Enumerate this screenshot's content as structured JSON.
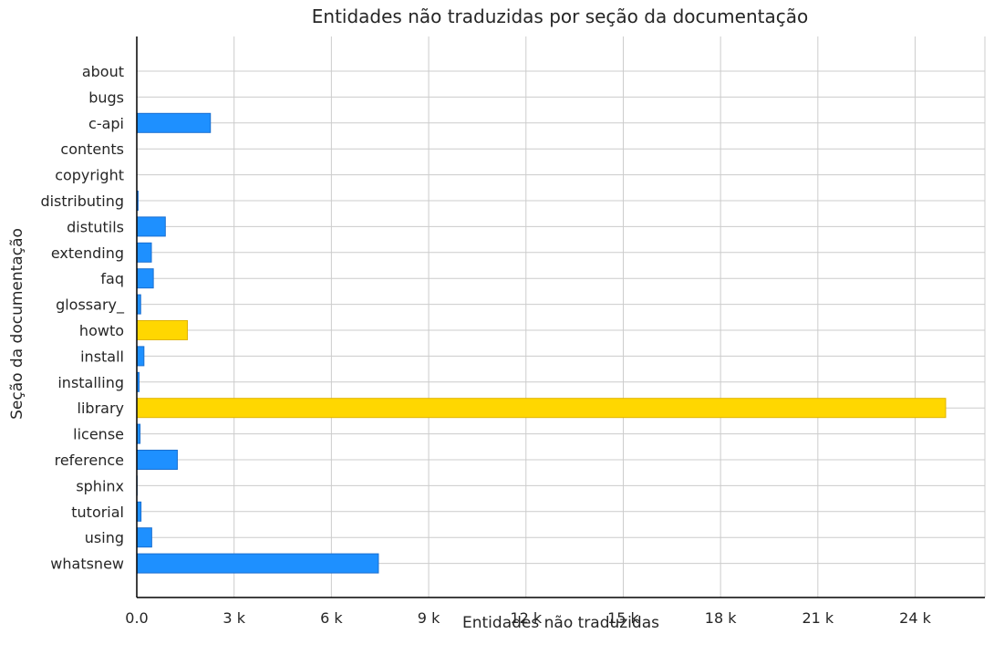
{
  "chart_data": {
    "type": "bar",
    "orientation": "horizontal",
    "title": "Entidades não traduzidas por seção da documentação",
    "xlabel": "Entidades não traduzidas",
    "ylabel": "Seção da documentação",
    "xlim": [
      0,
      26150
    ],
    "xticks": [
      0,
      3000,
      6000,
      9000,
      12000,
      15000,
      18000,
      21000,
      24000
    ],
    "xtick_labels": [
      "0.0",
      "3 k",
      "6 k",
      "9 k",
      "12 k",
      "15 k",
      "18 k",
      "21 k",
      "24 k"
    ],
    "grid": true,
    "categories": [
      "about",
      "bugs",
      "c-api",
      "contents",
      "copyright",
      "distributing",
      "distutils",
      "extending",
      "faq",
      "glossary_",
      "howto",
      "install",
      "installing",
      "library",
      "license",
      "reference",
      "sphinx",
      "tutorial",
      "using",
      "whatsnew"
    ],
    "values": [
      0,
      0,
      2270,
      0,
      0,
      40,
      880,
      450,
      510,
      120,
      1560,
      220,
      70,
      24940,
      100,
      1250,
      10,
      130,
      460,
      7450
    ],
    "highlighted": [
      "howto",
      "library"
    ],
    "colors": {
      "bar": "#1e90ff",
      "bar_edge": "#1a6fd0",
      "highlight": "#ffd700",
      "highlight_edge": "#e0b400"
    }
  }
}
